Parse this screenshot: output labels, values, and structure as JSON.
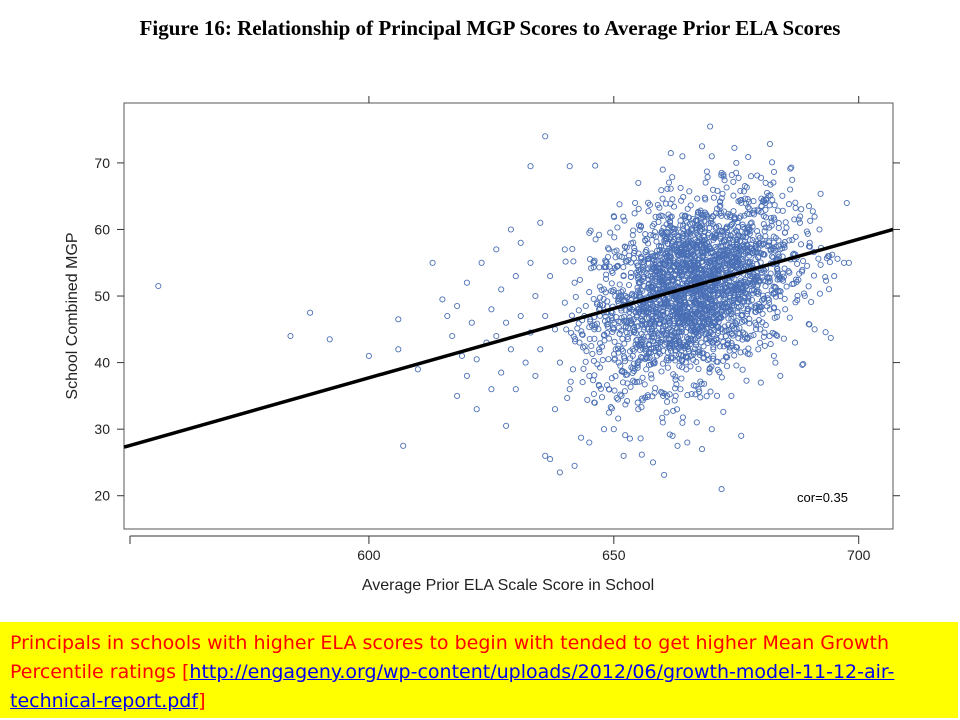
{
  "title": "Figure 16: Relationship of Principal MGP Scores to Average Prior ELA Scores",
  "caption": {
    "text": "Principals in schools with higher ELA scores to begin with tended to get higher Mean Growth Percentile ratings [",
    "link": "http://engageny.org/wp-content/uploads/2012/06/growth-model-11-12-air-technical-report.pdf",
    "suffix": "]",
    "text_color": "#ff0000",
    "link_color": "#0000ee",
    "background": "#ffff00"
  },
  "chart_data": {
    "type": "scatter",
    "xlabel": "Average Prior ELA Scale Score in School",
    "ylabel": "School Combined MGP",
    "xlim": [
      550,
      707
    ],
    "ylim": [
      15,
      79
    ],
    "xticks": [
      600,
      650,
      700
    ],
    "yticks": [
      20,
      30,
      40,
      50,
      60,
      70
    ],
    "annotation": "cor=0.35",
    "point_color": "#4a6fb5",
    "trend_line": {
      "x": [
        550,
        707
      ],
      "y": [
        27.3,
        60
      ],
      "color": "#000000"
    },
    "cluster": {
      "center_x": 666,
      "center_y": 51,
      "sd_x": 10,
      "sd_y": 7,
      "count": 2600
    },
    "points": [
      [
        557,
        51.5
      ],
      [
        584,
        44
      ],
      [
        588,
        47.5
      ],
      [
        592,
        43.5
      ],
      [
        600,
        41
      ],
      [
        606,
        46.5
      ],
      [
        606,
        42
      ],
      [
        607,
        27.5
      ],
      [
        610,
        39
      ],
      [
        613,
        55
      ],
      [
        615,
        49.5
      ],
      [
        616,
        47
      ],
      [
        617,
        44
      ],
      [
        618,
        35
      ],
      [
        618,
        48.5
      ],
      [
        619,
        41
      ],
      [
        620,
        52
      ],
      [
        620,
        38
      ],
      [
        621,
        46
      ],
      [
        622,
        33
      ],
      [
        622,
        40.5
      ],
      [
        623,
        55
      ],
      [
        624,
        43
      ],
      [
        625,
        48
      ],
      [
        625,
        36
      ],
      [
        626,
        57
      ],
      [
        626,
        44
      ],
      [
        627,
        51
      ],
      [
        627,
        38.5
      ],
      [
        628,
        30.5
      ],
      [
        628,
        46
      ],
      [
        629,
        60
      ],
      [
        629,
        42
      ],
      [
        630,
        53
      ],
      [
        630,
        36
      ],
      [
        631,
        58
      ],
      [
        631,
        47
      ],
      [
        632,
        40
      ],
      [
        633,
        55
      ],
      [
        633,
        44.5
      ],
      [
        633,
        69.5
      ],
      [
        634,
        50
      ],
      [
        634,
        38
      ],
      [
        635,
        61
      ],
      [
        635,
        42
      ],
      [
        636,
        74
      ],
      [
        636,
        47
      ],
      [
        636,
        26
      ],
      [
        637,
        25.5
      ],
      [
        637,
        53
      ],
      [
        638,
        33
      ],
      [
        638,
        45
      ],
      [
        639,
        23.5
      ],
      [
        639,
        40
      ],
      [
        640,
        57
      ],
      [
        640,
        49
      ],
      [
        641,
        69.5
      ],
      [
        641,
        36
      ],
      [
        642,
        24.5
      ],
      [
        642,
        52
      ],
      [
        643,
        43
      ],
      [
        644,
        47
      ],
      [
        645,
        59.5
      ],
      [
        645,
        38
      ],
      [
        646,
        55
      ],
      [
        646,
        34
      ],
      [
        647,
        48
      ],
      [
        647,
        42
      ],
      [
        648,
        30
      ],
      [
        648,
        51
      ],
      [
        649,
        57
      ],
      [
        649,
        36
      ],
      [
        650,
        45
      ],
      [
        650,
        62
      ],
      [
        651,
        40
      ],
      [
        652,
        26
      ],
      [
        652,
        53
      ],
      [
        655,
        33
      ],
      [
        657,
        64
      ],
      [
        658,
        25
      ],
      [
        660,
        31
      ],
      [
        662,
        29
      ],
      [
        663,
        27.5
      ],
      [
        665,
        28
      ],
      [
        668,
        27
      ],
      [
        670,
        30
      ],
      [
        672,
        21
      ],
      [
        674,
        35
      ],
      [
        676,
        29
      ],
      [
        668,
        72.5
      ],
      [
        670,
        71
      ],
      [
        675,
        70
      ],
      [
        678,
        68
      ],
      [
        681,
        67
      ],
      [
        683,
        40
      ],
      [
        686,
        66
      ],
      [
        688,
        61
      ],
      [
        690,
        58
      ],
      [
        692,
        60
      ],
      [
        694,
        56
      ],
      [
        695,
        53
      ],
      [
        697,
        55
      ],
      [
        698,
        55
      ],
      [
        691,
        45
      ],
      [
        687,
        43
      ],
      [
        684,
        38
      ],
      [
        680,
        37
      ],
      [
        660,
        69
      ],
      [
        655,
        67
      ],
      [
        664,
        71
      ],
      [
        672,
        68.5
      ],
      [
        676,
        64
      ],
      [
        685,
        48
      ],
      [
        689,
        50
      ],
      [
        682,
        57
      ],
      [
        645,
        28
      ],
      [
        650,
        30
      ]
    ]
  }
}
